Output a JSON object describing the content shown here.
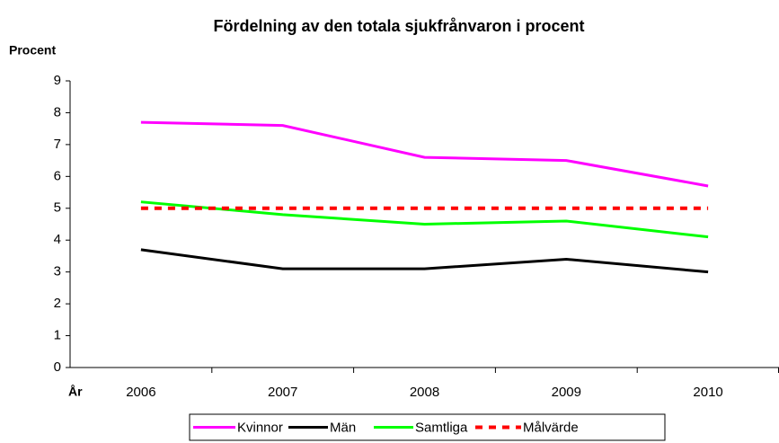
{
  "chart_data": {
    "type": "line",
    "title": "Fördelning av den totala sjukfrånvaron i procent",
    "y_label": "Procent",
    "x_label": "År",
    "categories": [
      "2006",
      "2007",
      "2008",
      "2009",
      "2010"
    ],
    "series": [
      {
        "name": "Kvinnor",
        "color": "#ff00ff",
        "values": [
          7.7,
          7.6,
          6.6,
          6.5,
          5.7
        ]
      },
      {
        "name": "Män",
        "color": "#000000",
        "values": [
          3.7,
          3.1,
          3.1,
          3.4,
          3.0
        ]
      },
      {
        "name": "Samtliga",
        "color": "#00ff00",
        "values": [
          5.2,
          4.8,
          4.5,
          4.6,
          4.1
        ]
      },
      {
        "name": "Målvärde",
        "color": "#ff0000",
        "dashed": true,
        "values": [
          5,
          5,
          5,
          5,
          5
        ]
      }
    ],
    "ylim": [
      0,
      9
    ],
    "yticks": [
      0,
      1,
      2,
      3,
      4,
      5,
      6,
      7,
      8,
      9
    ],
    "grid": false,
    "legend": "bottom"
  }
}
